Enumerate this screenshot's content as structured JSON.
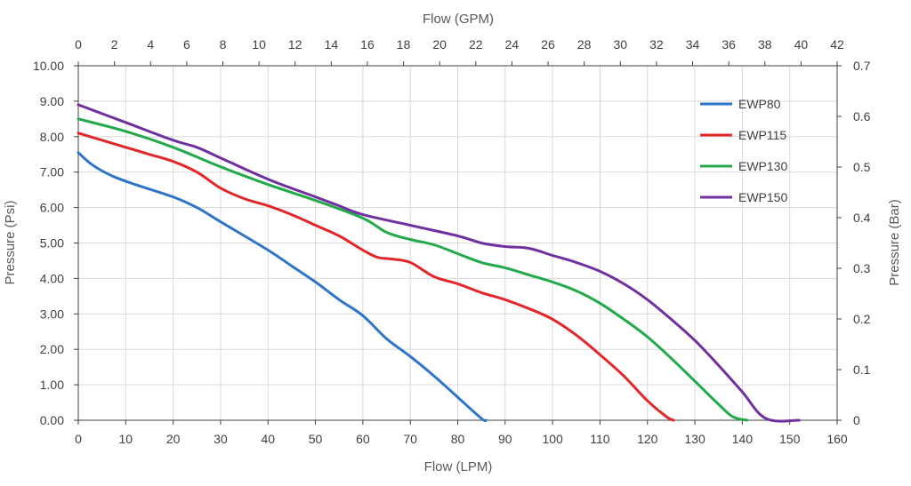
{
  "chart_data": {
    "type": "line",
    "xlabel": "Flow (LPM)",
    "x2label": "Flow (GPM)",
    "ylabel": "Pressure (Psi)",
    "y2label": "Pressure (Bar)",
    "xlim": [
      0,
      160
    ],
    "x2lim": [
      0,
      42
    ],
    "ylim": [
      0,
      10
    ],
    "y2lim": [
      0,
      0.7
    ],
    "x_ticks": [
      "0",
      "10",
      "20",
      "30",
      "40",
      "50",
      "60",
      "70",
      "80",
      "90",
      "100",
      "110",
      "120",
      "130",
      "140",
      "150",
      "160"
    ],
    "x2_ticks": [
      "0",
      "2",
      "4",
      "6",
      "8",
      "10",
      "12",
      "14",
      "16",
      "18",
      "20",
      "22",
      "24",
      "26",
      "28",
      "30",
      "32",
      "34",
      "36",
      "38",
      "40",
      "42"
    ],
    "y_ticks": [
      "0.00",
      "1.00",
      "2.00",
      "3.00",
      "4.00",
      "5.00",
      "6.00",
      "7.00",
      "8.00",
      "9.00",
      "10.00"
    ],
    "y2_ticks": [
      "0",
      "0.1",
      "0.2",
      "0.3",
      "0.4",
      "0.5",
      "0.6",
      "0.7"
    ],
    "grid": true,
    "legend_position": "top-right",
    "series": [
      {
        "name": "EWP80",
        "color": "#2e75c9",
        "points": [
          [
            0,
            7.55
          ],
          [
            3,
            7.2
          ],
          [
            7,
            6.9
          ],
          [
            12,
            6.65
          ],
          [
            20,
            6.3
          ],
          [
            25,
            6.0
          ],
          [
            30,
            5.6
          ],
          [
            40,
            4.8
          ],
          [
            45,
            4.35
          ],
          [
            50,
            3.9
          ],
          [
            55,
            3.4
          ],
          [
            60,
            2.95
          ],
          [
            65,
            2.3
          ],
          [
            70,
            1.8
          ],
          [
            75,
            1.25
          ],
          [
            80,
            0.65
          ],
          [
            85,
            0.05
          ],
          [
            86,
            0
          ]
        ]
      },
      {
        "name": "EWP115",
        "color": "#e3262a",
        "points": [
          [
            0,
            8.1
          ],
          [
            5,
            7.9
          ],
          [
            10,
            7.7
          ],
          [
            15,
            7.5
          ],
          [
            20,
            7.3
          ],
          [
            25,
            7.0
          ],
          [
            30,
            6.55
          ],
          [
            35,
            6.25
          ],
          [
            40,
            6.05
          ],
          [
            45,
            5.8
          ],
          [
            50,
            5.5
          ],
          [
            55,
            5.2
          ],
          [
            60,
            4.8
          ],
          [
            63,
            4.6
          ],
          [
            66,
            4.55
          ],
          [
            70,
            4.45
          ],
          [
            75,
            4.05
          ],
          [
            80,
            3.85
          ],
          [
            85,
            3.6
          ],
          [
            90,
            3.4
          ],
          [
            95,
            3.15
          ],
          [
            100,
            2.85
          ],
          [
            105,
            2.4
          ],
          [
            110,
            1.85
          ],
          [
            115,
            1.25
          ],
          [
            120,
            0.55
          ],
          [
            124,
            0.1
          ],
          [
            125.5,
            0
          ]
        ]
      },
      {
        "name": "EWP130",
        "color": "#22aa4a",
        "points": [
          [
            0,
            8.5
          ],
          [
            10,
            8.15
          ],
          [
            20,
            7.7
          ],
          [
            30,
            7.15
          ],
          [
            40,
            6.65
          ],
          [
            50,
            6.2
          ],
          [
            60,
            5.7
          ],
          [
            65,
            5.3
          ],
          [
            70,
            5.1
          ],
          [
            75,
            4.95
          ],
          [
            80,
            4.7
          ],
          [
            85,
            4.45
          ],
          [
            90,
            4.3
          ],
          [
            95,
            4.1
          ],
          [
            100,
            3.9
          ],
          [
            105,
            3.65
          ],
          [
            110,
            3.3
          ],
          [
            115,
            2.85
          ],
          [
            120,
            2.35
          ],
          [
            125,
            1.75
          ],
          [
            130,
            1.1
          ],
          [
            135,
            0.45
          ],
          [
            138,
            0.1
          ],
          [
            141,
            0
          ]
        ]
      },
      {
        "name": "EWP150",
        "color": "#7030a0",
        "points": [
          [
            0,
            8.9
          ],
          [
            10,
            8.4
          ],
          [
            20,
            7.9
          ],
          [
            25,
            7.7
          ],
          [
            30,
            7.4
          ],
          [
            40,
            6.8
          ],
          [
            50,
            6.3
          ],
          [
            55,
            6.05
          ],
          [
            60,
            5.8
          ],
          [
            70,
            5.5
          ],
          [
            80,
            5.2
          ],
          [
            85,
            5.0
          ],
          [
            90,
            4.9
          ],
          [
            95,
            4.85
          ],
          [
            100,
            4.65
          ],
          [
            105,
            4.45
          ],
          [
            110,
            4.2
          ],
          [
            115,
            3.85
          ],
          [
            120,
            3.4
          ],
          [
            125,
            2.85
          ],
          [
            130,
            2.25
          ],
          [
            135,
            1.55
          ],
          [
            140,
            0.8
          ],
          [
            145,
            0.05
          ],
          [
            152,
            0
          ]
        ]
      }
    ]
  }
}
